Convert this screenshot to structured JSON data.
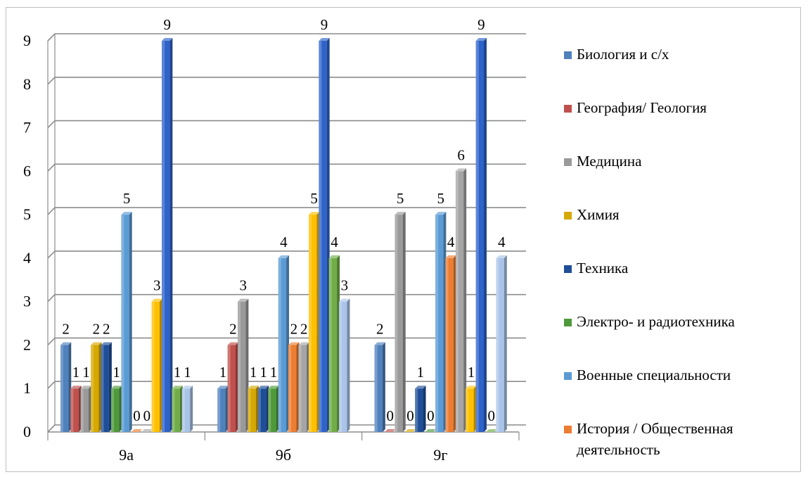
{
  "chart_data": {
    "type": "bar",
    "categories": [
      "9а",
      "9б",
      "9г"
    ],
    "ylim": [
      0,
      9
    ],
    "yticks": [
      0,
      1,
      2,
      3,
      4,
      5,
      6,
      7,
      8,
      9
    ],
    "grid": true,
    "legend_position": "right",
    "series": [
      {
        "name": "Биология и с/х",
        "color": "#4f81bd",
        "values": [
          2,
          1,
          2
        ]
      },
      {
        "name": "География/ Геология",
        "color": "#c0504d",
        "values": [
          1,
          2,
          0
        ]
      },
      {
        "name": "Медицина",
        "color": "#9a9a9a",
        "values": [
          1,
          3,
          5
        ]
      },
      {
        "name": "Химия",
        "color": "#d6a800",
        "values": [
          2,
          1,
          0
        ]
      },
      {
        "name": "Техника",
        "color": "#1f4e99",
        "values": [
          2,
          1,
          1
        ]
      },
      {
        "name": "Электро- и радиотехника",
        "color": "#4e9a3a",
        "values": [
          1,
          1,
          0
        ]
      },
      {
        "name": "Военные специальности",
        "color": "#5b9bd5",
        "values": [
          5,
          4,
          5
        ]
      },
      {
        "name": "История / Общественная деятельность",
        "color": "#ed7d31",
        "values": [
          0,
          2,
          4
        ]
      },
      {
        "name": "",
        "color": "#a5a5a5",
        "values": [
          0,
          2,
          6
        ]
      },
      {
        "name": "",
        "color": "#ffc000",
        "values": [
          3,
          5,
          1
        ]
      },
      {
        "name": "",
        "color": "#2e63c9",
        "values": [
          9,
          9,
          9
        ]
      },
      {
        "name": "",
        "color": "#70ad47",
        "values": [
          1,
          4,
          0
        ]
      },
      {
        "name": "",
        "color": "#a9c4e8",
        "values": [
          1,
          3,
          4
        ]
      }
    ],
    "legend_labels": [
      [
        "Биология и с/х"
      ],
      [
        "География/ Геология"
      ],
      [
        "Медицина"
      ],
      [
        "Химия"
      ],
      [
        "Техника"
      ],
      [
        "Электро- и радиотехника"
      ],
      [
        "Военные специальности"
      ],
      [
        "История / Общественная",
        "деятельность"
      ]
    ]
  }
}
